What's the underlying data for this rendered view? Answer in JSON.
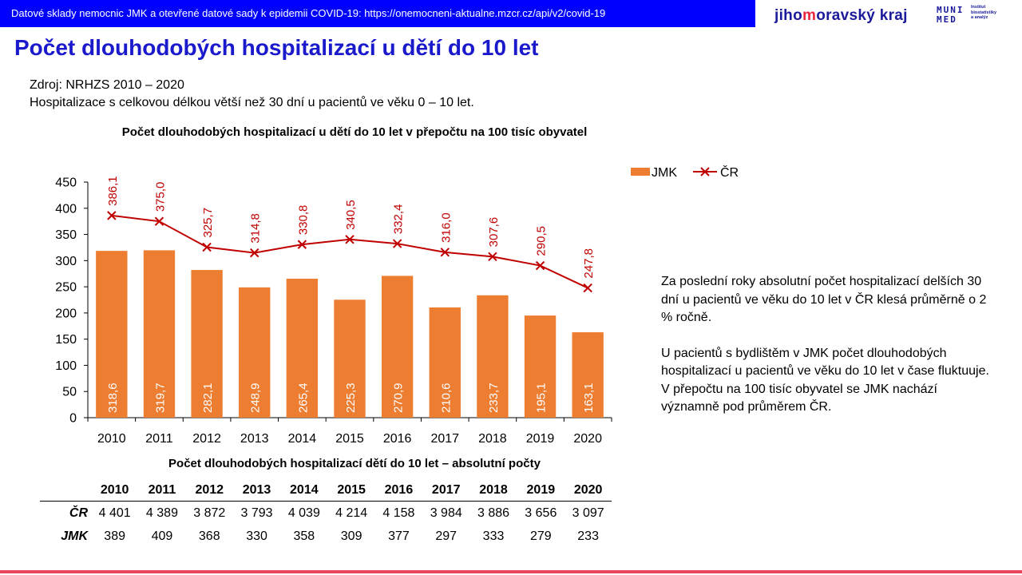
{
  "header": {
    "banner_text": "Datové sklady nemocnic JMK a otevřené datové sady k epidemii COVID-19: https://onemocneni-aktualne.mzcr.cz/api/v2/covid-19",
    "logo_jmk": {
      "part1": "jiho",
      "part2": "m",
      "part3": "oravský kraj"
    },
    "logo_muni": {
      "line1": "MUNI",
      "line2": "MED"
    },
    "logo_institute": {
      "line1": "Institut",
      "line2": "biostatistiky",
      "line3": "a analýz"
    }
  },
  "page_title": "Počet dlouhodobých hospitalizací u dětí do 10 let",
  "source_line": "Zdroj: NRHZS 2010 – 2020",
  "note_line": "Hospitalizace s celkovou délkou větší než 30 dní u pacientů ve věku 0 – 10 let.",
  "chart_data": {
    "type": "bar",
    "title": "Počet dlouhodobých hospitalizací u dětí do 10 let v přepočtu na 100 tisíc obyvatel",
    "categories": [
      "2010",
      "2011",
      "2012",
      "2013",
      "2014",
      "2015",
      "2016",
      "2017",
      "2018",
      "2019",
      "2020"
    ],
    "series": [
      {
        "name": "JMK",
        "type": "bar",
        "color": "#ed7d31",
        "values": [
          318.6,
          319.7,
          282.1,
          248.9,
          265.4,
          225.3,
          270.9,
          210.6,
          233.7,
          195.1,
          163.1
        ],
        "labels": [
          "318,6",
          "319,7",
          "282,1",
          "248,9",
          "265,4",
          "225,3",
          "270,9",
          "210,6",
          "233,7",
          "195,1",
          "163,1"
        ]
      },
      {
        "name": "ČR",
        "type": "line",
        "marker": "x",
        "color": "#c00000",
        "values": [
          386.1,
          375.0,
          325.7,
          314.8,
          330.8,
          340.5,
          332.4,
          316.0,
          307.6,
          290.5,
          247.8
        ],
        "labels": [
          "386,1",
          "375,0",
          "325,7",
          "314,8",
          "330,8",
          "340,5",
          "332,4",
          "316,0",
          "307,6",
          "290,5",
          "247,8"
        ]
      }
    ],
    "ylim": [
      0,
      450
    ],
    "yticks": [
      0,
      50,
      100,
      150,
      200,
      250,
      300,
      350,
      400,
      450
    ],
    "grid": false,
    "legend": "top-right"
  },
  "side_text": [
    "Za poslední roky absolutní počet hospitalizací delších 30 dní u pacientů ve věku do 10 let v ČR klesá průměrně o 2 % ročně.",
    "U pacientů s bydlištěm v JMK počet dlouhodobých hospitalizací u pacientů ve věku do 10 let v čase fluktuuje. V přepočtu na 100 tisíc obyvatel se JMK nachází významně pod průměrem ČR."
  ],
  "abs_table": {
    "title": "Počet dlouhodobých hospitalizací dětí do 10 let – absolutní počty",
    "years": [
      "2010",
      "2011",
      "2012",
      "2013",
      "2014",
      "2015",
      "2016",
      "2017",
      "2018",
      "2019",
      "2020"
    ],
    "rows": [
      {
        "label": "ČR",
        "values": [
          "4 401",
          "4 389",
          "3 872",
          "3 793",
          "4 039",
          "4 214",
          "4 158",
          "3 984",
          "3 886",
          "3 656",
          "3 097"
        ]
      },
      {
        "label": "JMK",
        "values": [
          "389",
          "409",
          "368",
          "330",
          "358",
          "309",
          "377",
          "297",
          "333",
          "279",
          "233"
        ]
      }
    ]
  },
  "colors": {
    "banner": "#0000ff",
    "title": "#1a1acc",
    "bar": "#ed7d31",
    "line": "#c00000",
    "accent_line": "#e8455d"
  }
}
